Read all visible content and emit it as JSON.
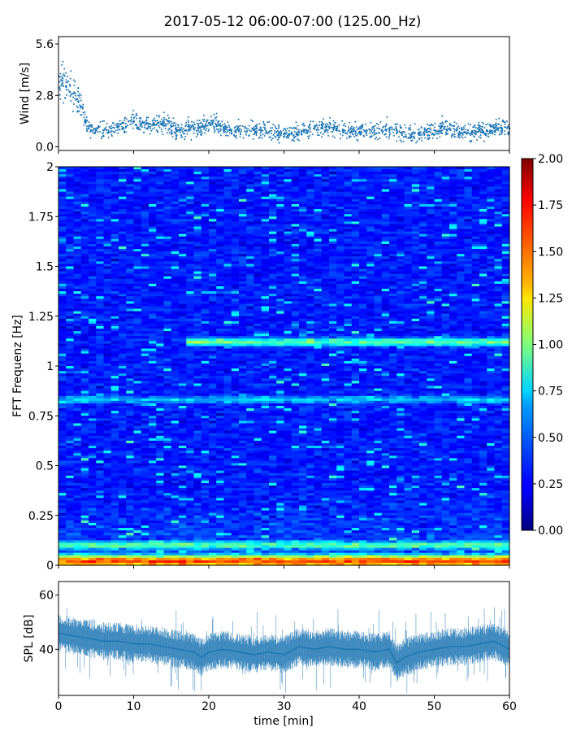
{
  "title": "2017-05-12 06:00-07:00 (125.00_Hz)",
  "chart_data": [
    {
      "type": "scatter",
      "panel": "wind",
      "ylabel": "Wind [m/s]",
      "xlabel": "",
      "xlim": [
        0,
        60
      ],
      "ylim": [
        -0.2,
        6.0
      ],
      "yticks": [
        "0.0",
        "2.8",
        "5.6"
      ],
      "ytick_values": [
        0.0,
        2.8,
        5.6
      ],
      "color": "#1f77b4",
      "x": [
        0.5,
        1,
        1.5,
        2,
        2.5,
        3,
        4,
        5,
        6,
        7,
        8,
        9,
        10,
        11,
        12,
        13,
        14,
        15,
        16,
        17,
        18,
        19,
        20,
        21,
        22,
        23,
        24,
        25,
        26,
        27,
        28,
        29,
        30,
        31,
        32,
        33,
        34,
        35,
        36,
        37,
        38,
        39,
        40,
        41,
        42,
        43,
        44,
        45,
        46,
        47,
        48,
        49,
        50,
        51,
        52,
        53,
        54,
        55,
        56,
        57,
        58,
        59,
        60
      ],
      "y": [
        3.6,
        3.3,
        3.0,
        2.9,
        2.6,
        2.2,
        1.0,
        0.9,
        0.9,
        1.0,
        1.1,
        1.1,
        1.4,
        1.2,
        1.1,
        1.2,
        1.3,
        1.1,
        0.9,
        0.9,
        1.0,
        1.1,
        1.3,
        1.2,
        1.0,
        0.9,
        0.9,
        0.8,
        0.9,
        0.9,
        0.8,
        0.8,
        0.7,
        0.7,
        0.8,
        0.9,
        1.0,
        1.0,
        1.1,
        1.0,
        0.9,
        0.8,
        0.8,
        0.9,
        0.8,
        0.9,
        1.0,
        0.9,
        0.8,
        0.7,
        0.7,
        0.8,
        0.9,
        1.1,
        1.0,
        0.9,
        0.8,
        0.8,
        0.9,
        0.9,
        1.0,
        1.0,
        1.0
      ]
    },
    {
      "type": "heatmap",
      "panel": "spectrogram",
      "ylabel": "FFT Frequenz [Hz]",
      "xlabel": "",
      "xlim": [
        0,
        60
      ],
      "ylim": [
        0,
        2
      ],
      "yticks": [
        "0",
        "0.25",
        "0.5",
        "0.75",
        "1",
        "1.25",
        "1.5",
        "1.75",
        "2"
      ],
      "ytick_values": [
        0,
        0.25,
        0.5,
        0.75,
        1,
        1.25,
        1.5,
        1.75,
        2
      ],
      "colormap": "jet",
      "vlim": [
        0,
        2
      ],
      "colorbar_ticks": [
        "0.00",
        "0.25",
        "0.50",
        "0.75",
        "1.00",
        "1.25",
        "1.50",
        "1.75",
        "2.00"
      ],
      "colorbar_tick_values": [
        0,
        0.25,
        0.5,
        0.75,
        1,
        1.25,
        1.5,
        1.75,
        2
      ],
      "background_level": 0.3,
      "features": [
        {
          "freq": 1.12,
          "x_from": 17,
          "x_to": 60,
          "level": 0.95
        },
        {
          "freq": 0.83,
          "x_from": 0,
          "x_to": 60,
          "level": 0.65
        },
        {
          "freq": 0.1,
          "x_from": 0,
          "x_to": 60,
          "level": 0.85
        },
        {
          "freq": 0.02,
          "x_from": 0,
          "x_to": 60,
          "level": 1.5
        }
      ]
    },
    {
      "type": "line",
      "panel": "spl",
      "ylabel": "SPL [dB]",
      "xlabel": "time [min]",
      "xlim": [
        0,
        60
      ],
      "ylim": [
        23,
        65
      ],
      "yticks": [
        "40",
        "60"
      ],
      "ytick_values": [
        40,
        60
      ],
      "xticks": [
        "0",
        "10",
        "20",
        "30",
        "40",
        "50",
        "60"
      ],
      "xtick_values": [
        0,
        10,
        20,
        30,
        40,
        50,
        60
      ],
      "color": "#1f77b4",
      "x": [
        0,
        2,
        4,
        6,
        8,
        10,
        12,
        14,
        16,
        18,
        19,
        20,
        22,
        24,
        26,
        28,
        30,
        32,
        34,
        36,
        38,
        40,
        42,
        44,
        45,
        46,
        48,
        50,
        52,
        54,
        56,
        58,
        60
      ],
      "y": [
        46,
        45,
        44,
        43,
        43,
        42,
        42,
        41,
        40,
        39,
        37,
        39,
        40,
        39,
        38,
        39,
        38,
        41,
        40,
        41,
        40,
        40,
        39,
        40,
        35,
        37,
        39,
        40,
        41,
        41,
        42,
        43,
        40
      ]
    }
  ]
}
